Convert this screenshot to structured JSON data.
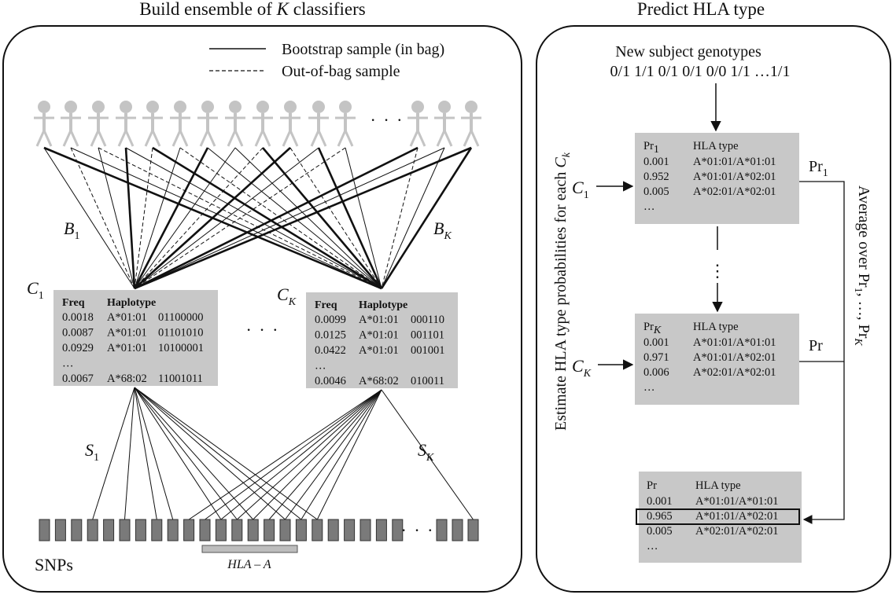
{
  "left_panel": {
    "title_prefix": "Build ensemble of",
    "title_var": "K",
    "title_suffix": "classifiers",
    "legend": {
      "in_bag": "Bootstrap sample (in bag)",
      "out_of_bag": "Out-of-bag sample"
    },
    "ellipsis": "· · ·",
    "b1": {
      "main": "B",
      "sub": "1"
    },
    "bk": {
      "main": "B",
      "sub": "K"
    },
    "c1": {
      "main": "C",
      "sub": "1"
    },
    "ck": {
      "main": "C",
      "sub": "K"
    },
    "s1": {
      "main": "S",
      "sub": "1"
    },
    "sk": {
      "main": "S",
      "sub": "K"
    },
    "snps_label": "SNPs",
    "hla_a_label": "HLA – A",
    "table1": {
      "col_freq": "Freq",
      "col_haplotype": "Haplotype",
      "rows": [
        {
          "freq": "0.0018",
          "allele": "A*01:01",
          "bits": "01100000"
        },
        {
          "freq": "0.0087",
          "allele": "A*01:01",
          "bits": "01101010"
        },
        {
          "freq": "0.0929",
          "allele": "A*01:01",
          "bits": "10100001"
        },
        {
          "freq": "…",
          "allele": "",
          "bits": ""
        },
        {
          "freq": "0.0067",
          "allele": "A*68:02",
          "bits": "11001011"
        }
      ]
    },
    "tableK": {
      "col_freq": "Freq",
      "col_haplotype": "Haplotype",
      "rows": [
        {
          "freq": "0.0099",
          "allele": "A*01:01",
          "bits": "000110"
        },
        {
          "freq": "0.0125",
          "allele": "A*01:01",
          "bits": "001101"
        },
        {
          "freq": "0.0422",
          "allele": "A*01:01",
          "bits": "001001"
        },
        {
          "freq": "…",
          "allele": "",
          "bits": ""
        },
        {
          "freq": "0.0046",
          "allele": "A*68:02",
          "bits": "010011"
        }
      ]
    }
  },
  "right_panel": {
    "title": "Predict HLA type",
    "new_subject_label": "New subject genotypes",
    "genotypes": "0/1 1/1 0/1 0/1 0/0 1/1 …1/1",
    "vertical_label_left_prefix": "Estimate HLA type probabilities for each",
    "vertical_label_left_var": "C",
    "vertical_label_left_sub": "k",
    "vertical_label_right_prefix": "Average over Pr",
    "vertical_label_right_sub1": "1",
    "vertical_label_right_mid": ", …, Pr",
    "vertical_label_right_subk": "K",
    "c1": {
      "main": "C",
      "sub": "1"
    },
    "ck": {
      "main": "C",
      "sub": "K"
    },
    "pr1_out": {
      "main": "Pr",
      "sub": "1"
    },
    "prk_out": {
      "main": "Pr",
      "sub": "K"
    },
    "vdots": "⋮",
    "box1": {
      "col_pr": "Pr",
      "col_pr_sub": "1",
      "col_hla": "HLA type",
      "rows": [
        {
          "p": "0.001",
          "t": "A*01:01/A*01:01"
        },
        {
          "p": "0.952",
          "t": "A*01:01/A*02:01"
        },
        {
          "p": "0.005",
          "t": "A*02:01/A*02:01"
        },
        {
          "p": "…",
          "t": ""
        }
      ]
    },
    "boxK": {
      "col_pr": "Pr",
      "col_pr_sub": "K",
      "col_hla": "HLA type",
      "rows": [
        {
          "p": "0.001",
          "t": "A*01:01/A*01:01"
        },
        {
          "p": "0.971",
          "t": "A*01:01/A*02:01"
        },
        {
          "p": "0.006",
          "t": "A*02:01/A*02:01"
        },
        {
          "p": "…",
          "t": ""
        }
      ]
    },
    "boxFinal": {
      "col_pr": "Pr",
      "col_hla": "HLA type",
      "rows": [
        {
          "p": "0.001",
          "t": "A*01:01/A*01:01"
        },
        {
          "p": "0.965",
          "t": "A*01:01/A*02:01"
        },
        {
          "p": "0.005",
          "t": "A*02:01/A*02:01"
        },
        {
          "p": "…",
          "t": ""
        }
      ]
    }
  },
  "colors": {
    "box_fill": "#c8c8c8",
    "person": "#c4c4c4",
    "snp_fill": "#7a7a7a",
    "line": "#111111"
  }
}
